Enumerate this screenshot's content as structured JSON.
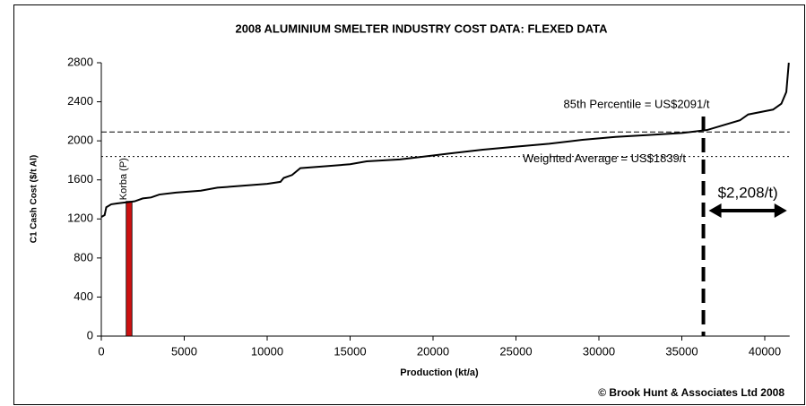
{
  "chart_data": {
    "type": "line",
    "title": "2008 ALUMINIUM SMELTER INDUSTRY COST DATA: FLEXED DATA",
    "x_label": "Production (kt/a)",
    "y_label": "C1 Cash Cost ($/t Al)",
    "source": "© Brook Hunt & Associates Ltd 2008",
    "x": [
      0,
      200,
      300,
      600,
      1000,
      1500,
      2000,
      2500,
      3000,
      3500,
      4500,
      6000,
      7000,
      8500,
      10000,
      10800,
      11000,
      11500,
      12000,
      13500,
      15000,
      16000,
      18000,
      20000,
      21000,
      22000,
      23000,
      25000,
      27000,
      29000,
      31000,
      33000,
      35000,
      36500,
      37500,
      38500,
      39000,
      40500,
      41000,
      41300,
      41450
    ],
    "values": [
      1220,
      1240,
      1320,
      1350,
      1360,
      1370,
      1380,
      1410,
      1420,
      1450,
      1470,
      1490,
      1520,
      1540,
      1560,
      1580,
      1620,
      1650,
      1720,
      1740,
      1760,
      1790,
      1810,
      1850,
      1870,
      1890,
      1910,
      1940,
      1970,
      2010,
      2040,
      2060,
      2080,
      2110,
      2160,
      2210,
      2270,
      2320,
      2380,
      2500,
      2800
    ],
    "color": "#000000",
    "highlight": {
      "label": "Korba (P)",
      "x": [
        1500,
        1850
      ],
      "value": 1380,
      "color": "#cc1111"
    },
    "reference_lines": [
      {
        "label": "85th Percentile = US$2091/t",
        "value": 2091,
        "style": "dashed"
      },
      {
        "label": "Weighted Average = US$1839/t",
        "value": 1839,
        "style": "dotted"
      }
    ],
    "percentile_x": 36300,
    "arrow_label": "$2,208/t)",
    "xlim": [
      0,
      41500
    ],
    "ylim": [
      0,
      2800
    ],
    "xticks": [
      0,
      5000,
      10000,
      15000,
      20000,
      25000,
      30000,
      35000,
      40000
    ],
    "yticks": [
      0,
      400,
      800,
      1200,
      1600,
      2000,
      2400,
      2800
    ]
  }
}
